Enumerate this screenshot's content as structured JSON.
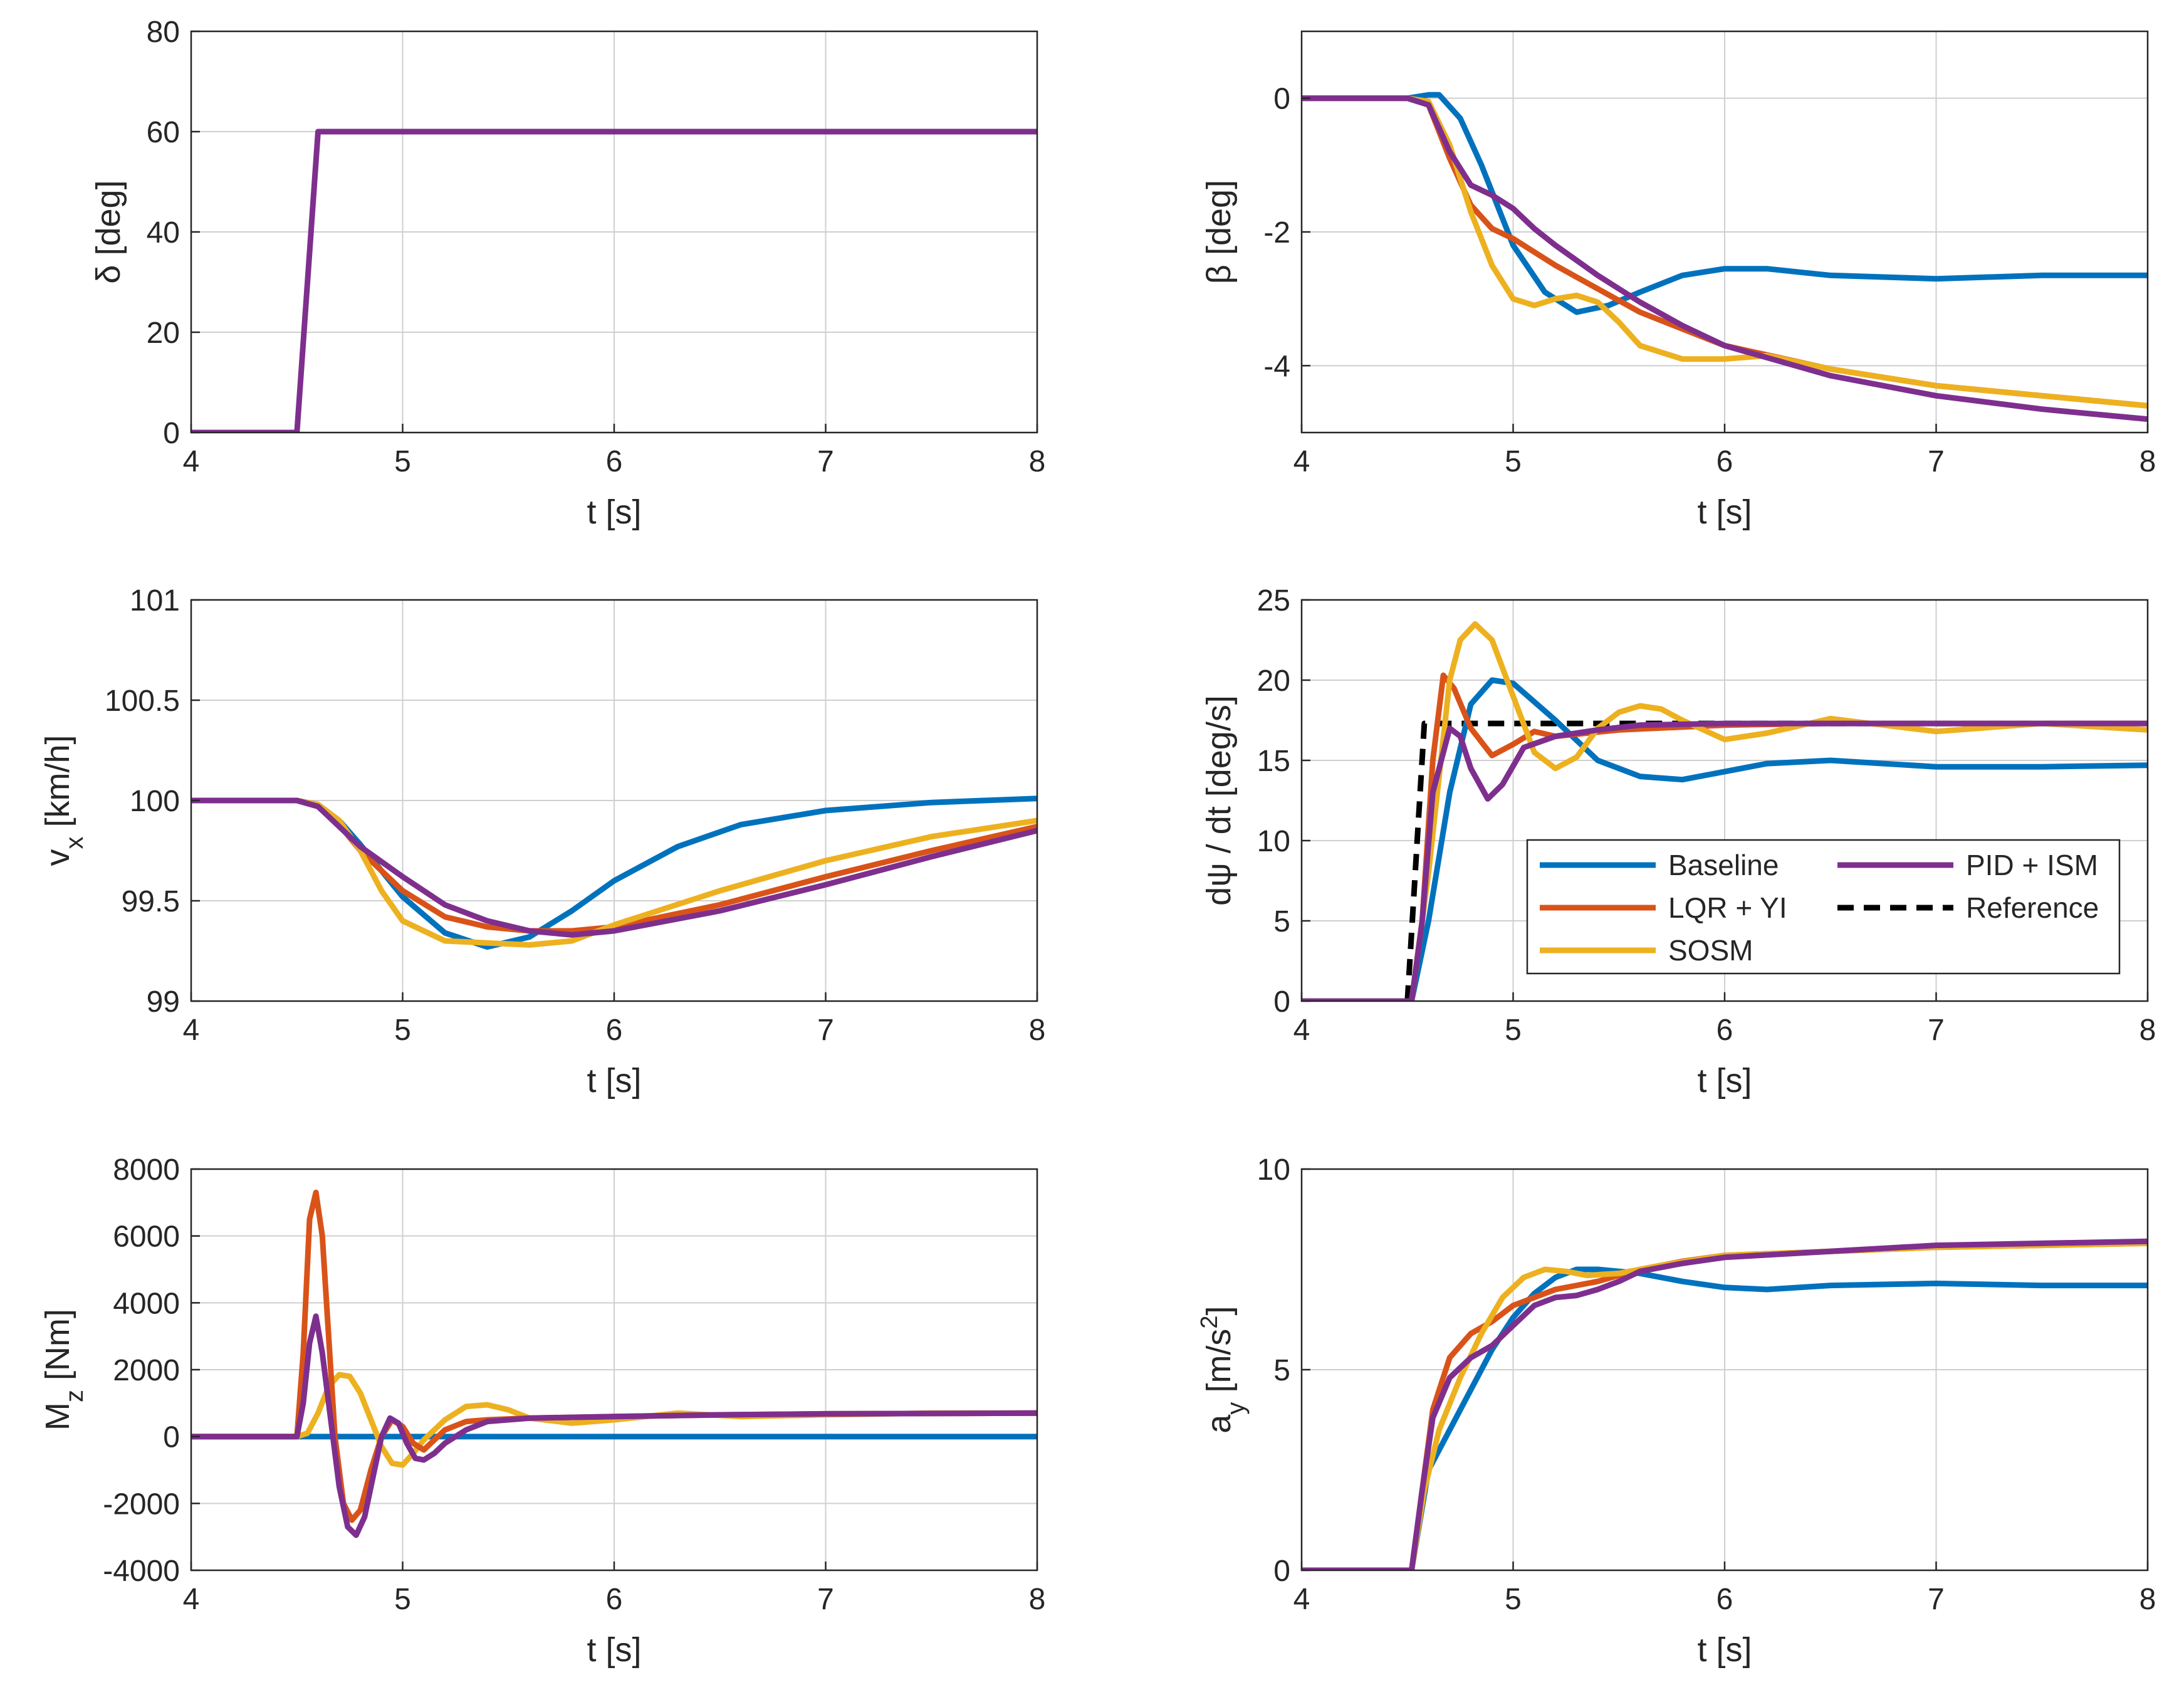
{
  "colors": {
    "baseline": "#0072BD",
    "lqr_yi": "#D95319",
    "sosm": "#EDB120",
    "pid_ism": "#7E2F8E",
    "reference": "#000000",
    "grid": "#cfcfcf",
    "axis": "#262626"
  },
  "legend": {
    "baseline": "Baseline",
    "lqr_yi": "LQR + YI",
    "sosm": "SOSM",
    "pid_ism": "PID + ISM",
    "reference": "Reference"
  },
  "chart_data": [
    {
      "id": "delta",
      "type": "line",
      "xlabel": "t [s]",
      "ylabel": "δ [deg]",
      "xlim": [
        4,
        8
      ],
      "ylim": [
        0,
        80
      ],
      "xticks": [
        "4",
        "5",
        "6",
        "7",
        "8"
      ],
      "yticks": [
        "0",
        "20",
        "40",
        "60",
        "80"
      ],
      "series": [
        {
          "key": "pid_ism",
          "x": [
            4,
            4.5,
            4.6,
            8
          ],
          "y": [
            0,
            0,
            60,
            60
          ]
        }
      ]
    },
    {
      "id": "beta",
      "type": "line",
      "xlabel": "t [s]",
      "ylabel": "β [deg]",
      "xlim": [
        4,
        8
      ],
      "ylim": [
        -5,
        1
      ],
      "xticks": [
        "4",
        "5",
        "6",
        "7",
        "8"
      ],
      "yticks": [
        "-4",
        "-2",
        "0"
      ],
      "series": [
        {
          "key": "baseline",
          "x": [
            4,
            4.5,
            4.6,
            4.65,
            4.75,
            4.85,
            5.0,
            5.15,
            5.3,
            5.45,
            5.6,
            5.8,
            6.0,
            6.2,
            6.5,
            7.0,
            7.5,
            8.0
          ],
          "y": [
            0,
            0,
            0.05,
            0.05,
            -0.3,
            -1.0,
            -2.2,
            -2.9,
            -3.2,
            -3.1,
            -2.9,
            -2.65,
            -2.55,
            -2.55,
            -2.65,
            -2.7,
            -2.65,
            -2.65
          ]
        },
        {
          "key": "lqr_yi",
          "x": [
            4,
            4.5,
            4.6,
            4.7,
            4.8,
            4.9,
            5.0,
            5.2,
            5.4,
            5.6,
            5.8,
            6.0,
            6.5,
            7.0,
            7.5,
            8.0
          ],
          "y": [
            0,
            0,
            -0.1,
            -0.9,
            -1.6,
            -1.95,
            -2.1,
            -2.5,
            -2.85,
            -3.2,
            -3.45,
            -3.7,
            -4.05,
            -4.3,
            -4.45,
            -4.6
          ]
        },
        {
          "key": "sosm",
          "x": [
            4,
            4.5,
            4.6,
            4.7,
            4.8,
            4.9,
            5.0,
            5.1,
            5.2,
            5.3,
            5.4,
            5.5,
            5.6,
            5.8,
            6.0,
            6.2,
            6.5,
            7.0,
            7.5,
            8.0
          ],
          "y": [
            0,
            0,
            -0.05,
            -0.7,
            -1.7,
            -2.5,
            -3.0,
            -3.1,
            -3.0,
            -2.95,
            -3.05,
            -3.35,
            -3.7,
            -3.9,
            -3.9,
            -3.85,
            -4.05,
            -4.3,
            -4.45,
            -4.6
          ]
        },
        {
          "key": "pid_ism",
          "x": [
            4,
            4.5,
            4.6,
            4.7,
            4.8,
            4.9,
            5.0,
            5.1,
            5.2,
            5.4,
            5.6,
            5.8,
            6.0,
            6.5,
            7.0,
            7.5,
            8.0
          ],
          "y": [
            0,
            0,
            -0.1,
            -0.8,
            -1.3,
            -1.45,
            -1.65,
            -1.95,
            -2.2,
            -2.65,
            -3.05,
            -3.4,
            -3.7,
            -4.15,
            -4.45,
            -4.65,
            -4.8
          ]
        }
      ]
    },
    {
      "id": "vx",
      "type": "line",
      "xlabel": "t [s]",
      "ylabel": "v_x [km/h]",
      "xlim": [
        4,
        8
      ],
      "ylim": [
        99,
        101
      ],
      "xticks": [
        "4",
        "5",
        "6",
        "7",
        "8"
      ],
      "yticks": [
        "99",
        "99.5",
        "100",
        "100.5",
        "101"
      ],
      "series": [
        {
          "key": "baseline",
          "x": [
            4,
            4.5,
            4.6,
            4.7,
            4.8,
            5.0,
            5.2,
            5.4,
            5.6,
            5.8,
            6.0,
            6.3,
            6.6,
            7.0,
            7.5,
            8.0
          ],
          "y": [
            100,
            100,
            99.98,
            99.9,
            99.78,
            99.52,
            99.34,
            99.27,
            99.32,
            99.45,
            99.6,
            99.77,
            99.88,
            99.95,
            99.99,
            100.01
          ]
        },
        {
          "key": "lqr_yi",
          "x": [
            4,
            4.5,
            4.6,
            4.7,
            4.8,
            5.0,
            5.2,
            5.4,
            5.6,
            5.8,
            6.0,
            6.5,
            7.0,
            7.5,
            8.0
          ],
          "y": [
            100,
            100,
            99.97,
            99.88,
            99.75,
            99.55,
            99.42,
            99.37,
            99.35,
            99.35,
            99.37,
            99.48,
            99.62,
            99.75,
            99.87
          ]
        },
        {
          "key": "sosm",
          "x": [
            4,
            4.5,
            4.6,
            4.7,
            4.8,
            4.9,
            5.0,
            5.2,
            5.4,
            5.6,
            5.8,
            6.0,
            6.5,
            7.0,
            7.5,
            8.0
          ],
          "y": [
            100,
            100,
            99.98,
            99.9,
            99.75,
            99.55,
            99.4,
            99.3,
            99.29,
            99.28,
            99.3,
            99.38,
            99.55,
            99.7,
            99.82,
            99.9
          ]
        },
        {
          "key": "pid_ism",
          "x": [
            4,
            4.5,
            4.6,
            4.7,
            4.8,
            5.0,
            5.2,
            5.4,
            5.6,
            5.8,
            6.0,
            6.5,
            7.0,
            7.5,
            8.0
          ],
          "y": [
            100,
            100,
            99.97,
            99.87,
            99.77,
            99.62,
            99.48,
            99.4,
            99.35,
            99.33,
            99.35,
            99.45,
            99.58,
            99.72,
            99.85
          ]
        }
      ]
    },
    {
      "id": "yawrate",
      "type": "line",
      "xlabel": "t [s]",
      "ylabel": "dψ / dt [deg/s]",
      "xlim": [
        4,
        8
      ],
      "ylim": [
        0,
        25
      ],
      "xticks": [
        "4",
        "5",
        "6",
        "7",
        "8"
      ],
      "yticks": [
        "0",
        "5",
        "10",
        "15",
        "20",
        "25"
      ],
      "legend_position": "bottom-right",
      "series": [
        {
          "key": "reference",
          "dashed": true,
          "x": [
            4,
            4.5,
            4.58,
            8
          ],
          "y": [
            0,
            0,
            17.3,
            17.3
          ]
        },
        {
          "key": "baseline",
          "x": [
            4,
            4.52,
            4.6,
            4.7,
            4.8,
            4.9,
            5.0,
            5.2,
            5.4,
            5.6,
            5.8,
            6.0,
            6.2,
            6.5,
            7.0,
            7.5,
            8.0
          ],
          "y": [
            0,
            0,
            5,
            13,
            18.5,
            20.0,
            19.8,
            17.5,
            15.0,
            14.0,
            13.8,
            14.3,
            14.8,
            15.0,
            14.6,
            14.6,
            14.7
          ]
        },
        {
          "key": "lqr_yi",
          "x": [
            4,
            4.52,
            4.57,
            4.62,
            4.67,
            4.72,
            4.8,
            4.9,
            5.0,
            5.1,
            5.2,
            5.5,
            6.0,
            6.5,
            7.0,
            8.0
          ],
          "y": [
            0,
            0,
            5,
            15,
            20.3,
            19.5,
            17.0,
            15.3,
            16.0,
            16.8,
            16.5,
            16.9,
            17.2,
            17.3,
            17.3,
            17.3
          ]
        },
        {
          "key": "sosm",
          "x": [
            4,
            4.52,
            4.6,
            4.7,
            4.75,
            4.82,
            4.9,
            5.0,
            5.1,
            5.2,
            5.3,
            5.4,
            5.5,
            5.6,
            5.7,
            5.8,
            6.0,
            6.2,
            6.5,
            7.0,
            7.5,
            8.0
          ],
          "y": [
            0,
            0,
            8,
            20,
            22.5,
            23.5,
            22.5,
            19.0,
            15.5,
            14.5,
            15.2,
            17.0,
            18.0,
            18.4,
            18.2,
            17.5,
            16.3,
            16.7,
            17.6,
            16.8,
            17.3,
            16.9
          ]
        },
        {
          "key": "pid_ism",
          "x": [
            4,
            4.52,
            4.57,
            4.62,
            4.7,
            4.75,
            4.8,
            4.88,
            4.95,
            5.05,
            5.2,
            5.4,
            5.6,
            6.0,
            6.5,
            7.0,
            8.0
          ],
          "y": [
            0,
            0,
            5,
            13,
            17.0,
            16.5,
            14.5,
            12.6,
            13.5,
            15.8,
            16.5,
            16.9,
            17.2,
            17.3,
            17.3,
            17.3,
            17.3
          ]
        }
      ]
    },
    {
      "id": "mz",
      "type": "line",
      "xlabel": "t [s]",
      "ylabel": "M_z [Nm]",
      "xlim": [
        4,
        8
      ],
      "ylim": [
        -4000,
        8000
      ],
      "xticks": [
        "4",
        "5",
        "6",
        "7",
        "8"
      ],
      "yticks": [
        "-4000",
        "-2000",
        "0",
        "2000",
        "4000",
        "6000",
        "8000"
      ],
      "series": [
        {
          "key": "baseline",
          "x": [
            4,
            8
          ],
          "y": [
            0,
            0
          ]
        },
        {
          "key": "sosm",
          "x": [
            4,
            4.5,
            4.55,
            4.6,
            4.65,
            4.7,
            4.75,
            4.8,
            4.85,
            4.9,
            4.95,
            5.0,
            5.05,
            5.1,
            5.2,
            5.3,
            5.4,
            5.5,
            5.6,
            5.8,
            6.0,
            6.3,
            6.6,
            7.0,
            7.5,
            8.0
          ],
          "y": [
            0,
            0,
            100,
            700,
            1500,
            1850,
            1800,
            1300,
            500,
            -300,
            -800,
            -850,
            -500,
            -100,
            500,
            900,
            950,
            800,
            550,
            400,
            500,
            700,
            600,
            650,
            700,
            700
          ]
        },
        {
          "key": "lqr_yi",
          "x": [
            4,
            4.5,
            4.53,
            4.56,
            4.59,
            4.62,
            4.65,
            4.68,
            4.72,
            4.76,
            4.8,
            4.85,
            4.9,
            4.95,
            5.0,
            5.05,
            5.1,
            5.2,
            5.3,
            5.4,
            5.6,
            6.0,
            6.5,
            7.0,
            8.0
          ],
          "y": [
            0,
            0,
            2500,
            6500,
            7300,
            6000,
            3000,
            0,
            -2000,
            -2500,
            -2200,
            -1000,
            0,
            500,
            300,
            -200,
            -400,
            200,
            450,
            500,
            550,
            600,
            650,
            680,
            700
          ]
        },
        {
          "key": "pid_ism",
          "x": [
            4,
            4.5,
            4.53,
            4.56,
            4.59,
            4.62,
            4.66,
            4.7,
            4.74,
            4.78,
            4.82,
            4.86,
            4.9,
            4.94,
            4.98,
            5.02,
            5.06,
            5.1,
            5.15,
            5.2,
            5.3,
            5.4,
            5.6,
            6.0,
            6.5,
            7.0,
            8.0
          ],
          "y": [
            0,
            0,
            1000,
            2800,
            3600,
            2500,
            500,
            -1500,
            -2700,
            -2950,
            -2400,
            -1200,
            0,
            550,
            400,
            -200,
            -650,
            -700,
            -500,
            -200,
            200,
            450,
            550,
            600,
            650,
            680,
            700
          ]
        }
      ]
    },
    {
      "id": "ay",
      "type": "line",
      "xlabel": "t [s]",
      "ylabel": "a_y [m/s^2]",
      "xlim": [
        4,
        8
      ],
      "ylim": [
        0,
        10
      ],
      "xticks": [
        "4",
        "5",
        "6",
        "7",
        "8"
      ],
      "yticks": [
        "0",
        "5",
        "10"
      ],
      "series": [
        {
          "key": "baseline",
          "x": [
            4,
            4.52,
            4.6,
            4.7,
            4.8,
            4.9,
            5.0,
            5.1,
            5.2,
            5.3,
            5.4,
            5.6,
            5.8,
            6.0,
            6.2,
            6.5,
            7.0,
            7.5,
            8.0
          ],
          "y": [
            0,
            0,
            2.5,
            3.5,
            4.5,
            5.5,
            6.3,
            6.9,
            7.3,
            7.5,
            7.5,
            7.4,
            7.2,
            7.05,
            7.0,
            7.1,
            7.15,
            7.1,
            7.1
          ]
        },
        {
          "key": "lqr_yi",
          "x": [
            4,
            4.52,
            4.57,
            4.62,
            4.7,
            4.8,
            4.9,
            5.0,
            5.2,
            5.4,
            5.6,
            5.8,
            6.0,
            6.5,
            7.0,
            7.5,
            8.0
          ],
          "y": [
            0,
            0,
            2.0,
            4.0,
            5.3,
            5.9,
            6.2,
            6.6,
            7.0,
            7.2,
            7.5,
            7.7,
            7.85,
            7.95,
            8.05,
            8.1,
            8.15
          ]
        },
        {
          "key": "sosm",
          "x": [
            4,
            4.52,
            4.58,
            4.65,
            4.75,
            4.85,
            4.95,
            5.05,
            5.15,
            5.25,
            5.35,
            5.5,
            5.7,
            6.0,
            6.5,
            7.0,
            7.5,
            8.0
          ],
          "y": [
            0,
            0,
            2.0,
            3.5,
            4.8,
            5.9,
            6.8,
            7.3,
            7.5,
            7.45,
            7.35,
            7.4,
            7.6,
            7.85,
            7.95,
            8.05,
            8.1,
            8.15
          ]
        },
        {
          "key": "pid_ism",
          "x": [
            4,
            4.52,
            4.57,
            4.62,
            4.7,
            4.8,
            4.9,
            5.0,
            5.1,
            5.2,
            5.3,
            5.4,
            5.5,
            5.6,
            5.8,
            6.0,
            6.5,
            7.0,
            7.5,
            8.0
          ],
          "y": [
            0,
            0,
            2.0,
            3.8,
            4.8,
            5.3,
            5.6,
            6.1,
            6.6,
            6.8,
            6.85,
            7.0,
            7.2,
            7.45,
            7.65,
            7.8,
            7.95,
            8.1,
            8.15,
            8.2
          ]
        }
      ]
    }
  ]
}
